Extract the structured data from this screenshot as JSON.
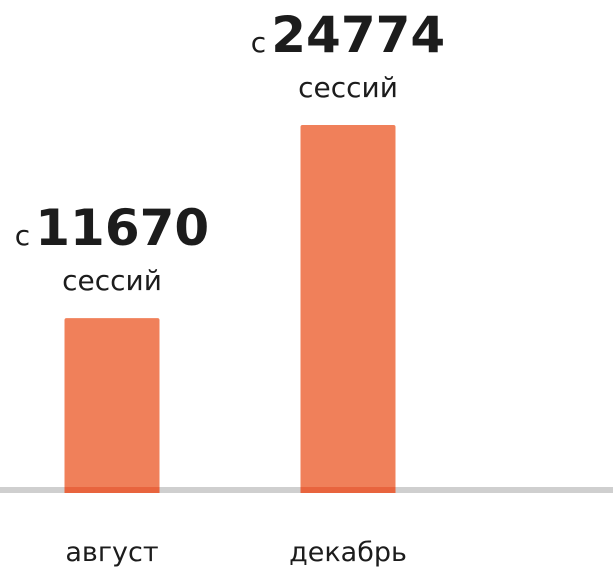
{
  "chart_data": {
    "type": "bar",
    "categories": [
      "август",
      "декабрь"
    ],
    "values": [
      11670,
      24774
    ],
    "label_prefix": "с",
    "label_suffix": "сессий",
    "color": "#f0805a"
  }
}
